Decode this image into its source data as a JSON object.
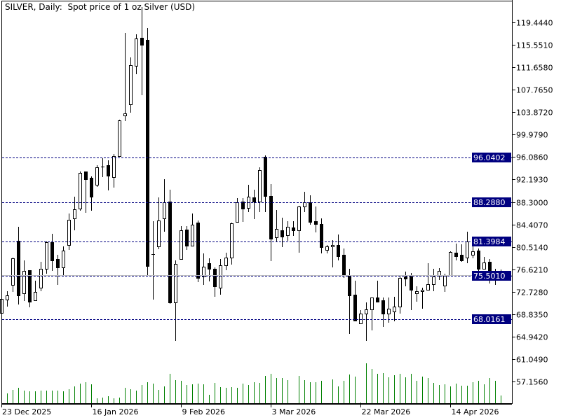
{
  "window": {
    "title": "SILVER, Daily:  Spot price of 1 oz Silver (USD)"
  },
  "chart_data": {
    "type": "candlestick",
    "title": "SILVER, Daily:  Spot price of 1 oz Silver (USD)",
    "symbol": "SILVER",
    "timeframe": "Daily",
    "ylim": [
      53.27,
      123.21
    ],
    "grid": false,
    "colors": {
      "bull_body": "#ffffff",
      "bear_body": "#000000",
      "candle_outline": "#000000",
      "volume": "#008000",
      "level_line": "#000080",
      "level_label_bg": "#000080",
      "level_label_text": "#ffffff",
      "bid_line": "#c0c0c0"
    },
    "y_ticks": [
      "119.4440",
      "115.5510",
      "111.6580",
      "107.7650",
      "103.8720",
      "99.9790",
      "96.0860",
      "92.1930",
      "88.3000",
      "84.4070",
      "80.5140",
      "76.6210",
      "72.7280",
      "68.8350",
      "64.9420",
      "61.0490",
      "57.1560"
    ],
    "x_labels": [
      {
        "index": 0,
        "label": "23 Dec 2025"
      },
      {
        "index": 16,
        "label": "16 Jan 2026"
      },
      {
        "index": 32,
        "label": "9 Feb 2026"
      },
      {
        "index": 48,
        "label": "3 Mar 2026"
      },
      {
        "index": 64,
        "label": "22 Mar 2026"
      },
      {
        "index": 80,
        "label": "14 Apr 2026"
      }
    ],
    "levels": [
      "96.0402",
      "88.2880",
      "81.3984",
      "75.5010",
      "68.0161"
    ],
    "bid": 75.61,
    "ohlc": [
      [
        69.06,
        72.33,
        68.69,
        71.48
      ],
      [
        71.36,
        72.82,
        70.15,
        72.09
      ],
      [
        73.91,
        78.64,
        72.7,
        78.52
      ],
      [
        81.56,
        83.99,
        70.51,
        72.09
      ],
      [
        72.46,
        78.16,
        71.12,
        76.34
      ],
      [
        76.46,
        76.46,
        70.03,
        71.0
      ],
      [
        71.24,
        74.64,
        71.24,
        72.7
      ],
      [
        73.43,
        77.92,
        72.82,
        76.7
      ],
      [
        76.7,
        81.44,
        75.86,
        81.32
      ],
      [
        81.32,
        82.78,
        76.34,
        78.16
      ],
      [
        78.4,
        79.13,
        73.91,
        76.95
      ],
      [
        76.95,
        80.59,
        75.49,
        79.86
      ],
      [
        80.83,
        86.3,
        79.98,
        85.2
      ],
      [
        85.45,
        89.21,
        83.38,
        87.03
      ],
      [
        87.15,
        93.58,
        86.78,
        93.34
      ],
      [
        93.58,
        93.58,
        86.42,
        92.25
      ],
      [
        92.49,
        92.73,
        86.78,
        89.21
      ],
      [
        91.27,
        94.67,
        90.91,
        94.31
      ],
      [
        94.43,
        95.89,
        92.61,
        94.43
      ],
      [
        94.67,
        95.52,
        90.3,
        92.85
      ],
      [
        92.61,
        96.62,
        90.79,
        96.25
      ],
      [
        96.25,
        102.57,
        96.13,
        102.45
      ],
      [
        103.3,
        117.62,
        102.32,
        103.66
      ],
      [
        105.24,
        113.37,
        103.78,
        112.04
      ],
      [
        111.92,
        117.38,
        110.46,
        116.65
      ],
      [
        116.77,
        122.12,
        106.82,
        115.56
      ],
      [
        116.41,
        118.47,
        75.37,
        77.19
      ],
      [
        79.25,
        84.96,
        71.36,
        79.25
      ],
      [
        80.59,
        89.09,
        80.1,
        85.08
      ],
      [
        85.45,
        92.25,
        83.14,
        88.24
      ],
      [
        88.36,
        90.42,
        70.63,
        70.88
      ],
      [
        70.88,
        78.16,
        64.2,
        77.55
      ],
      [
        78.4,
        84.11,
        78.4,
        83.38
      ],
      [
        83.5,
        84.11,
        79.98,
        80.71
      ],
      [
        80.71,
        86.3,
        80.71,
        84.35
      ],
      [
        84.72,
        85.08,
        74.4,
        75.13
      ],
      [
        75.37,
        79.37,
        73.91,
        77.07
      ],
      [
        77.67,
        78.52,
        74.52,
        76.7
      ],
      [
        76.7,
        76.95,
        71.85,
        73.67
      ],
      [
        73.43,
        78.4,
        72.21,
        77.31
      ],
      [
        77.31,
        79.5,
        76.46,
        78.64
      ],
      [
        78.64,
        84.72,
        77.43,
        84.6
      ],
      [
        84.84,
        88.97,
        84.72,
        88.24
      ],
      [
        88.36,
        88.97,
        84.84,
        87.15
      ],
      [
        87.27,
        91.27,
        86.54,
        89.21
      ],
      [
        89.09,
        90.42,
        85.33,
        88.36
      ],
      [
        88.36,
        94.31,
        86.54,
        93.82
      ],
      [
        96.13,
        96.37,
        86.54,
        89.33
      ],
      [
        89.33,
        91.4,
        78.04,
        81.93
      ],
      [
        82.17,
        86.9,
        81.44,
        83.63
      ],
      [
        83.38,
        85.57,
        80.47,
        82.29
      ],
      [
        82.53,
        84.96,
        81.56,
        83.99
      ],
      [
        83.87,
        84.96,
        82.41,
        83.38
      ],
      [
        83.38,
        87.63,
        79.5,
        87.51
      ],
      [
        87.51,
        90.06,
        86.54,
        88.24
      ],
      [
        88.24,
        89.45,
        84.35,
        84.84
      ],
      [
        84.96,
        87.51,
        83.02,
        84.48
      ],
      [
        84.48,
        85.45,
        79.37,
        80.47
      ],
      [
        79.98,
        80.83,
        79.37,
        80.59
      ],
      [
        80.59,
        81.68,
        76.95,
        80.83
      ],
      [
        80.83,
        82.65,
        78.16,
        78.89
      ],
      [
        79.13,
        80.23,
        75.13,
        75.61
      ],
      [
        75.61,
        76.7,
        65.41,
        72.09
      ],
      [
        72.21,
        74.64,
        67.6,
        67.72
      ],
      [
        67.23,
        69.54,
        67.23,
        68.93
      ],
      [
        68.93,
        70.88,
        64.2,
        69.66
      ],
      [
        69.66,
        71.73,
        66.02,
        71.73
      ],
      [
        71.73,
        74.64,
        71.0,
        71.0
      ],
      [
        71.24,
        71.73,
        66.63,
        68.93
      ],
      [
        68.93,
        71.73,
        67.36,
        69.78
      ],
      [
        69.3,
        71.85,
        67.6,
        70.15
      ],
      [
        70.15,
        75.37,
        68.93,
        75.13
      ],
      [
        75.37,
        76.22,
        73.67,
        75.0
      ],
      [
        75.37,
        75.98,
        69.54,
        73.06
      ],
      [
        72.46,
        73.67,
        71.0,
        72.82
      ],
      [
        72.82,
        73.43,
        69.78,
        73.06
      ],
      [
        73.06,
        77.67,
        73.06,
        74.03
      ],
      [
        74.03,
        76.7,
        72.82,
        75.37
      ],
      [
        75.49,
        76.83,
        74.76,
        76.34
      ],
      [
        73.79,
        75.86,
        72.7,
        75.61
      ],
      [
        75.61,
        79.74,
        75.49,
        79.62
      ],
      [
        79.5,
        81.08,
        78.16,
        78.89
      ],
      [
        79.13,
        80.95,
        77.92,
        78.16
      ],
      [
        78.64,
        83.14,
        77.67,
        81.44
      ],
      [
        79.13,
        80.71,
        78.52,
        79.74
      ],
      [
        79.86,
        80.23,
        75.49,
        76.7
      ],
      [
        76.7,
        78.77,
        76.7,
        77.8
      ],
      [
        77.92,
        78.4,
        74.15,
        75.49
      ],
      [
        75.61,
        76.7,
        73.91,
        76.1
      ],
      [
        75.73,
        76.58,
        74.64,
        75.73
      ]
    ],
    "volume_relative": [
      0,
      14,
      19,
      22,
      18,
      17,
      17,
      18,
      18,
      18,
      18,
      17,
      20,
      24,
      28,
      30,
      27,
      7,
      8,
      10,
      7,
      8,
      22,
      20,
      18,
      26,
      30,
      28,
      19,
      24,
      42,
      33,
      32,
      26,
      27,
      28,
      27,
      12,
      29,
      23,
      22,
      23,
      22,
      28,
      26,
      30,
      29,
      39,
      42,
      36,
      36,
      33,
      0,
      39,
      33,
      30,
      30,
      32,
      0,
      34,
      24,
      32,
      41,
      38,
      1,
      57,
      49,
      42,
      43,
      37,
      40,
      42,
      37,
      42,
      32,
      38,
      36,
      29,
      26,
      27,
      24,
      28,
      25,
      25,
      30,
      32,
      27,
      36,
      32,
      11
    ]
  }
}
